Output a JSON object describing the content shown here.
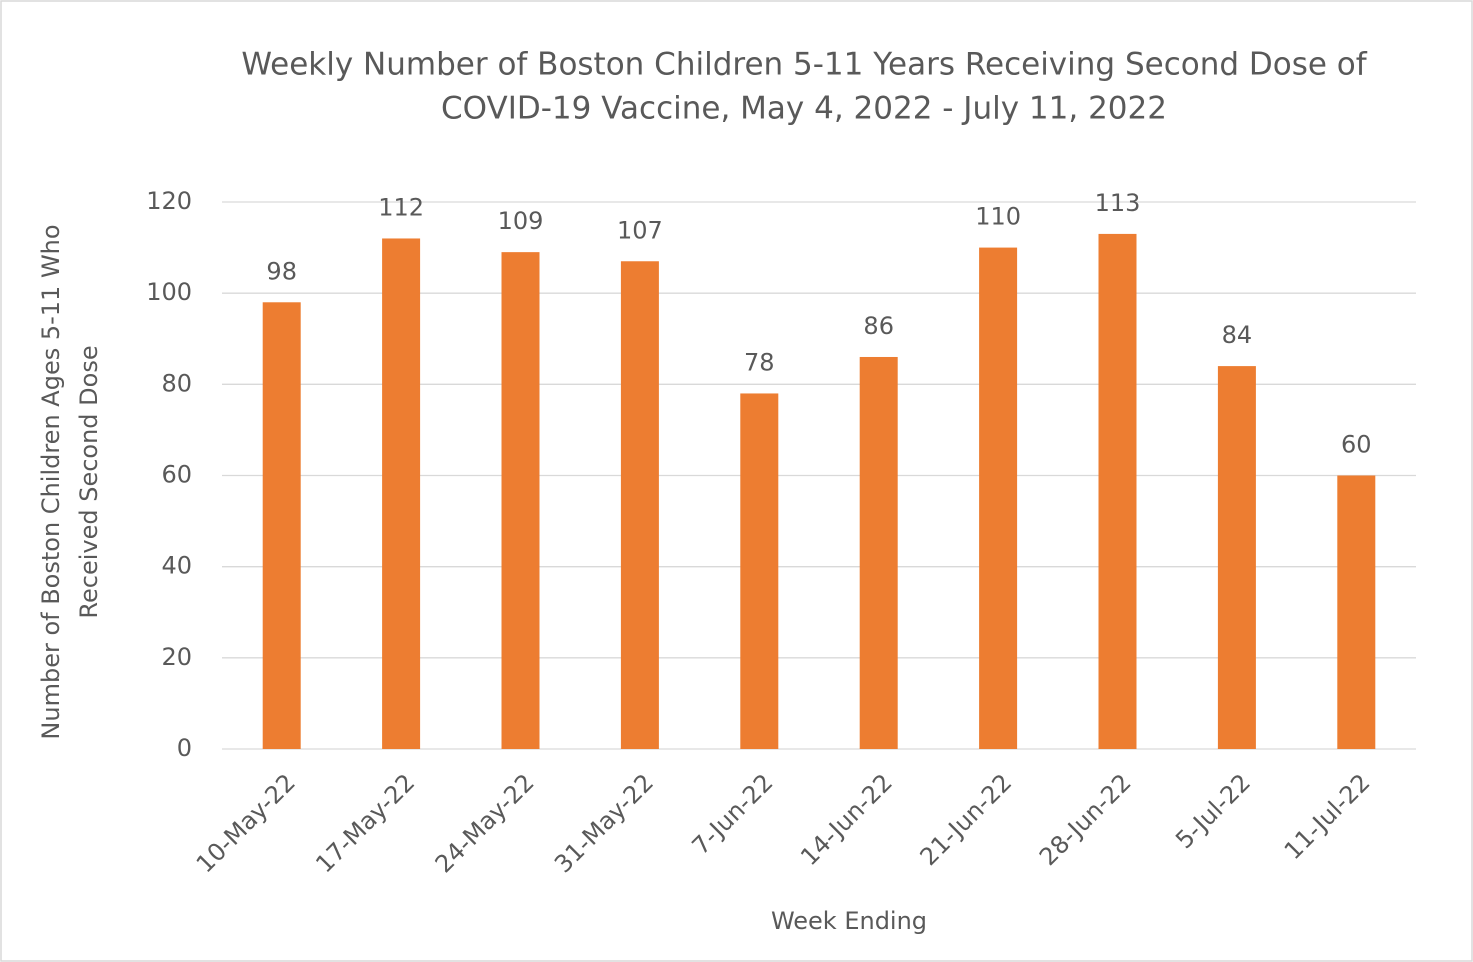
{
  "chart_data": {
    "type": "bar",
    "title": [
      "Weekly Number of Boston Children 5-11 Years Receiving Second Dose of",
      "COVID-19 Vaccine, May 4, 2022 - July 11, 2022"
    ],
    "x_label": "Week Ending",
    "y_label": [
      "Number of Boston Children  Ages 5-11 Who",
      "Received Second  Dose"
    ],
    "categories": [
      "10-May-22",
      "17-May-22",
      "24-May-22",
      "31-May-22",
      "7-Jun-22",
      "14-Jun-22",
      "21-Jun-22",
      "28-Jun-22",
      "5-Jul-22",
      "11-Jul-22"
    ],
    "values": [
      98,
      112,
      109,
      107,
      78,
      86,
      110,
      113,
      84,
      60
    ],
    "color": "#ed7d31",
    "ylim": [
      0,
      120
    ],
    "yticks": [
      0,
      20,
      40,
      60,
      80,
      100,
      120
    ],
    "grid": true
  }
}
